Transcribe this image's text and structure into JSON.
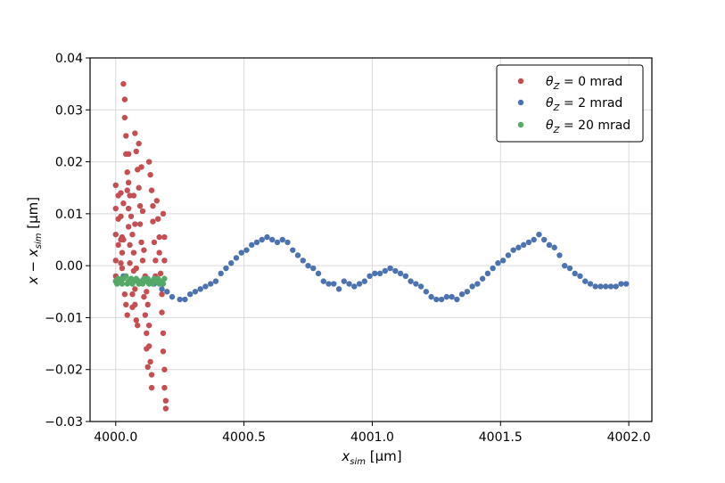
{
  "chart_data": {
    "type": "scatter",
    "title": "",
    "xlabel_main": "x",
    "xlabel_sub": "sim",
    "xlabel_unit": " [μm]",
    "ylabel_main": "x − x",
    "ylabel_sub": "sim",
    "ylabel_unit": " [μm]",
    "xlim": [
      3999.9,
      4002.09
    ],
    "ylim": [
      -0.03,
      0.04
    ],
    "xticks": [
      4000.0,
      4000.5,
      4001.0,
      4001.5,
      4002.0
    ],
    "xtick_labels": [
      "4000.0",
      "4000.5",
      "4001.0",
      "4001.5",
      "4002.0"
    ],
    "yticks": [
      -0.03,
      -0.02,
      -0.01,
      0.0,
      0.01,
      0.02,
      0.03,
      0.04
    ],
    "ytick_labels": [
      "−0.03",
      "−0.02",
      "−0.01",
      "0.00",
      "0.01",
      "0.02",
      "0.03",
      "0.04"
    ],
    "grid": true,
    "legend_position": "top-right",
    "series": [
      {
        "name_symbol": "θ",
        "name_sub": "Z",
        "name_rest": " = 0 mrad",
        "color": "#c44e52",
        "points": [
          [
            4000.0,
            0.0155
          ],
          [
            4000.0,
            0.011
          ],
          [
            4000.0,
            0.006
          ],
          [
            4000.0,
            0.001
          ],
          [
            4000.0,
            -0.002
          ],
          [
            4000.01,
            0.0135
          ],
          [
            4000.01,
            0.009
          ],
          [
            4000.01,
            0.004
          ],
          [
            4000.02,
            0.014
          ],
          [
            4000.02,
            0.0095
          ],
          [
            4000.02,
            0.005
          ],
          [
            4000.02,
            0.0005
          ],
          [
            4000.025,
            0.0055
          ],
          [
            4000.025,
            0.0025
          ],
          [
            4000.025,
            -0.0005
          ],
          [
            4000.03,
            0.012
          ],
          [
            4000.03,
            0.005
          ],
          [
            4000.03,
            0.035
          ],
          [
            4000.035,
            0.032
          ],
          [
            4000.035,
            0.0285
          ],
          [
            4000.04,
            0.025
          ],
          [
            4000.04,
            0.0215
          ],
          [
            4000.045,
            0.018
          ],
          [
            4000.045,
            0.0145
          ],
          [
            4000.05,
            0.011
          ],
          [
            4000.05,
            0.0075
          ],
          [
            4000.055,
            0.004
          ],
          [
            4000.055,
            0.0005
          ],
          [
            4000.06,
            -0.003
          ],
          [
            4000.065,
            -0.0055
          ],
          [
            4000.065,
            -0.008
          ],
          [
            4000.035,
            -0.0055
          ],
          [
            4000.04,
            -0.0075
          ],
          [
            4000.045,
            -0.0095
          ],
          [
            4000.05,
            0.0215
          ],
          [
            4000.05,
            0.016
          ],
          [
            4000.055,
            0.0135
          ],
          [
            4000.06,
            0.0095
          ],
          [
            4000.065,
            0.006
          ],
          [
            4000.07,
            0.0025
          ],
          [
            4000.07,
            -0.001
          ],
          [
            4000.075,
            -0.0045
          ],
          [
            4000.075,
            -0.0075
          ],
          [
            4000.08,
            -0.0105
          ],
          [
            4000.07,
            0.0135
          ],
          [
            4000.075,
            0.008
          ],
          [
            4000.08,
            -0.0005
          ],
          [
            4000.085,
            -0.0115
          ],
          [
            4000.075,
            0.0255
          ],
          [
            4000.08,
            0.022
          ],
          [
            4000.085,
            0.0185
          ],
          [
            4000.09,
            0.015
          ],
          [
            4000.095,
            0.0115
          ],
          [
            4000.095,
            0.008
          ],
          [
            4000.1,
            0.0045
          ],
          [
            4000.105,
            0.001
          ],
          [
            4000.11,
            -0.0025
          ],
          [
            4000.11,
            -0.006
          ],
          [
            4000.115,
            -0.0095
          ],
          [
            4000.12,
            -0.013
          ],
          [
            4000.12,
            -0.016
          ],
          [
            4000.125,
            -0.0195
          ],
          [
            4000.09,
            0.0235
          ],
          [
            4000.1,
            0.019
          ],
          [
            4000.105,
            0.0105
          ],
          [
            4000.11,
            0.003
          ],
          [
            4000.115,
            -0.002
          ],
          [
            4000.12,
            -0.005
          ],
          [
            4000.125,
            -0.0075
          ],
          [
            4000.13,
            -0.0115
          ],
          [
            4000.13,
            -0.0155
          ],
          [
            4000.135,
            -0.0185
          ],
          [
            4000.14,
            -0.021
          ],
          [
            4000.14,
            -0.0235
          ],
          [
            4000.13,
            0.02
          ],
          [
            4000.135,
            0.0175
          ],
          [
            4000.14,
            0.0145
          ],
          [
            4000.145,
            0.0115
          ],
          [
            4000.145,
            0.0085
          ],
          [
            4000.15,
            0.0045
          ],
          [
            4000.155,
            0.001
          ],
          [
            4000.155,
            -0.002
          ],
          [
            4000.16,
            0.0125
          ],
          [
            4000.165,
            0.009
          ],
          [
            4000.17,
            0.0055
          ],
          [
            4000.17,
            0.0025
          ],
          [
            4000.175,
            -0.0015
          ],
          [
            4000.18,
            -0.0055
          ],
          [
            4000.18,
            -0.009
          ],
          [
            4000.185,
            -0.013
          ],
          [
            4000.185,
            -0.0165
          ],
          [
            4000.19,
            -0.02
          ],
          [
            4000.19,
            -0.0235
          ],
          [
            4000.195,
            -0.026
          ],
          [
            4000.195,
            -0.0275
          ],
          [
            4000.185,
            0.01
          ],
          [
            4000.19,
            0.0055
          ],
          [
            4000.19,
            0.001
          ]
        ]
      },
      {
        "name_symbol": "θ",
        "name_sub": "Z",
        "name_rest": " = 2 mrad",
        "color": "#4c72b0",
        "points": [
          [
            4000.0,
            -0.003
          ],
          [
            4000.03,
            -0.002
          ],
          [
            4000.06,
            -0.0025
          ],
          [
            4000.09,
            -0.003
          ],
          [
            4000.12,
            -0.003
          ],
          [
            4000.15,
            -0.0035
          ],
          [
            4000.18,
            -0.0045
          ],
          [
            4000.2,
            -0.005
          ],
          [
            4000.22,
            -0.006
          ],
          [
            4000.25,
            -0.0065
          ],
          [
            4000.27,
            -0.0065
          ],
          [
            4000.29,
            -0.0055
          ],
          [
            4000.31,
            -0.005
          ],
          [
            4000.33,
            -0.0045
          ],
          [
            4000.35,
            -0.004
          ],
          [
            4000.37,
            -0.0035
          ],
          [
            4000.39,
            -0.003
          ],
          [
            4000.41,
            -0.0015
          ],
          [
            4000.43,
            -0.0005
          ],
          [
            4000.45,
            0.0005
          ],
          [
            4000.47,
            0.0015
          ],
          [
            4000.49,
            0.0025
          ],
          [
            4000.51,
            0.003
          ],
          [
            4000.53,
            0.004
          ],
          [
            4000.55,
            0.0045
          ],
          [
            4000.57,
            0.005
          ],
          [
            4000.59,
            0.0055
          ],
          [
            4000.61,
            0.005
          ],
          [
            4000.63,
            0.0045
          ],
          [
            4000.65,
            0.005
          ],
          [
            4000.67,
            0.0045
          ],
          [
            4000.69,
            0.003
          ],
          [
            4000.71,
            0.002
          ],
          [
            4000.73,
            0.001
          ],
          [
            4000.75,
            0.0
          ],
          [
            4000.77,
            -0.0005
          ],
          [
            4000.79,
            -0.0015
          ],
          [
            4000.81,
            -0.003
          ],
          [
            4000.83,
            -0.0035
          ],
          [
            4000.85,
            -0.0035
          ],
          [
            4000.87,
            -0.0045
          ],
          [
            4000.89,
            -0.003
          ],
          [
            4000.91,
            -0.0035
          ],
          [
            4000.93,
            -0.004
          ],
          [
            4000.95,
            -0.0035
          ],
          [
            4000.97,
            -0.003
          ],
          [
            4000.99,
            -0.002
          ],
          [
            4001.01,
            -0.0015
          ],
          [
            4001.03,
            -0.0015
          ],
          [
            4001.05,
            -0.001
          ],
          [
            4001.07,
            -0.0005
          ],
          [
            4001.09,
            -0.001
          ],
          [
            4001.11,
            -0.0015
          ],
          [
            4001.13,
            -0.002
          ],
          [
            4001.15,
            -0.003
          ],
          [
            4001.17,
            -0.0035
          ],
          [
            4001.19,
            -0.004
          ],
          [
            4001.21,
            -0.005
          ],
          [
            4001.23,
            -0.006
          ],
          [
            4001.25,
            -0.0065
          ],
          [
            4001.27,
            -0.0065
          ],
          [
            4001.29,
            -0.006
          ],
          [
            4001.31,
            -0.006
          ],
          [
            4001.33,
            -0.0065
          ],
          [
            4001.35,
            -0.0055
          ],
          [
            4001.37,
            -0.005
          ],
          [
            4001.39,
            -0.004
          ],
          [
            4001.41,
            -0.0035
          ],
          [
            4001.43,
            -0.0025
          ],
          [
            4001.45,
            -0.0015
          ],
          [
            4001.47,
            -0.0005
          ],
          [
            4001.49,
            0.0005
          ],
          [
            4001.51,
            0.001
          ],
          [
            4001.53,
            0.002
          ],
          [
            4001.55,
            0.003
          ],
          [
            4001.57,
            0.0035
          ],
          [
            4001.59,
            0.004
          ],
          [
            4001.61,
            0.0045
          ],
          [
            4001.63,
            0.005
          ],
          [
            4001.65,
            0.006
          ],
          [
            4001.67,
            0.005
          ],
          [
            4001.69,
            0.004
          ],
          [
            4001.71,
            0.0035
          ],
          [
            4001.73,
            0.002
          ],
          [
            4001.75,
            0.0
          ],
          [
            4001.77,
            -0.0005
          ],
          [
            4001.79,
            -0.0015
          ],
          [
            4001.81,
            -0.002
          ],
          [
            4001.83,
            -0.003
          ],
          [
            4001.85,
            -0.0035
          ],
          [
            4001.87,
            -0.004
          ],
          [
            4001.89,
            -0.004
          ],
          [
            4001.91,
            -0.004
          ],
          [
            4001.93,
            -0.004
          ],
          [
            4001.95,
            -0.004
          ],
          [
            4001.97,
            -0.0035
          ],
          [
            4001.99,
            -0.0035
          ]
        ]
      },
      {
        "name_symbol": "θ",
        "name_sub": "Z",
        "name_rest": " = 20 mrad",
        "color": "#55a868",
        "points": [
          [
            4000.0,
            -0.003
          ],
          [
            4000.01,
            -0.0025
          ],
          [
            4000.02,
            -0.003
          ],
          [
            4000.03,
            -0.0025
          ],
          [
            4000.04,
            -0.002
          ],
          [
            4000.05,
            -0.003
          ],
          [
            4000.06,
            -0.0025
          ],
          [
            4000.07,
            -0.003
          ],
          [
            4000.08,
            -0.0025
          ],
          [
            4000.09,
            -0.0035
          ],
          [
            4000.1,
            -0.003
          ],
          [
            4000.11,
            -0.0025
          ],
          [
            4000.12,
            -0.003
          ],
          [
            4000.13,
            -0.0035
          ],
          [
            4000.14,
            -0.003
          ],
          [
            4000.15,
            -0.0025
          ],
          [
            4000.16,
            -0.003
          ],
          [
            4000.17,
            -0.0035
          ],
          [
            4000.18,
            -0.003
          ],
          [
            4000.19,
            -0.0025
          ],
          [
            4000.005,
            -0.0035
          ],
          [
            4000.025,
            -0.0035
          ],
          [
            4000.045,
            -0.0035
          ],
          [
            4000.065,
            -0.0035
          ],
          [
            4000.085,
            -0.003
          ],
          [
            4000.105,
            -0.0035
          ],
          [
            4000.125,
            -0.0025
          ],
          [
            4000.145,
            -0.0035
          ],
          [
            4000.165,
            -0.0025
          ],
          [
            4000.185,
            -0.0035
          ]
        ]
      }
    ]
  }
}
